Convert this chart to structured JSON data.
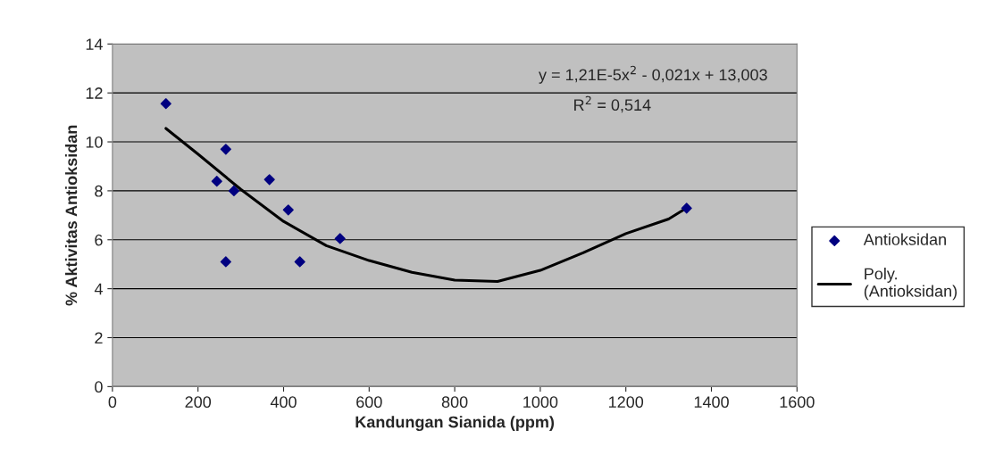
{
  "chart_data": {
    "type": "scatter",
    "xlabel": "Kandungan Sianida (ppm)",
    "ylabel": "% Aktivitas Antioksidan",
    "annotations": [
      "y = 1,21E-5x$^{2}$ - 0,021x + 13,003",
      "R$^{2}$ = 0,514"
    ],
    "series": [
      {
        "name": "Antioksidan",
        "color": "#000080",
        "marker": "diamond",
        "x": [
          125,
          244,
          265,
          265,
          284,
          367,
          411,
          438,
          532,
          1342
        ],
        "values": [
          11.56,
          8.39,
          9.7,
          5.1,
          8.0,
          8.46,
          7.22,
          5.1,
          6.05,
          7.29
        ]
      },
      {
        "name": "Poly.\n(Antioksidan)",
        "type": "line",
        "color": "#000000",
        "line_style": "solid",
        "x": [
          125,
          200,
          300,
          400,
          500,
          600,
          700,
          800,
          900,
          1000,
          1100,
          1200,
          1300,
          1342
        ],
        "values": [
          10.55,
          9.5,
          8.06,
          6.75,
          5.76,
          5.15,
          4.67,
          4.35,
          4.3,
          4.75,
          5.47,
          6.25,
          6.85,
          7.3
        ]
      }
    ],
    "xlim": [
      0,
      1600
    ],
    "xticks": [
      0,
      200,
      400,
      600,
      800,
      1000,
      1200,
      1400,
      1600
    ],
    "ylim": [
      0,
      14
    ],
    "yticks": [
      0,
      2,
      4,
      6,
      8,
      10,
      12,
      14
    ],
    "grid": "y",
    "legend": "right"
  }
}
